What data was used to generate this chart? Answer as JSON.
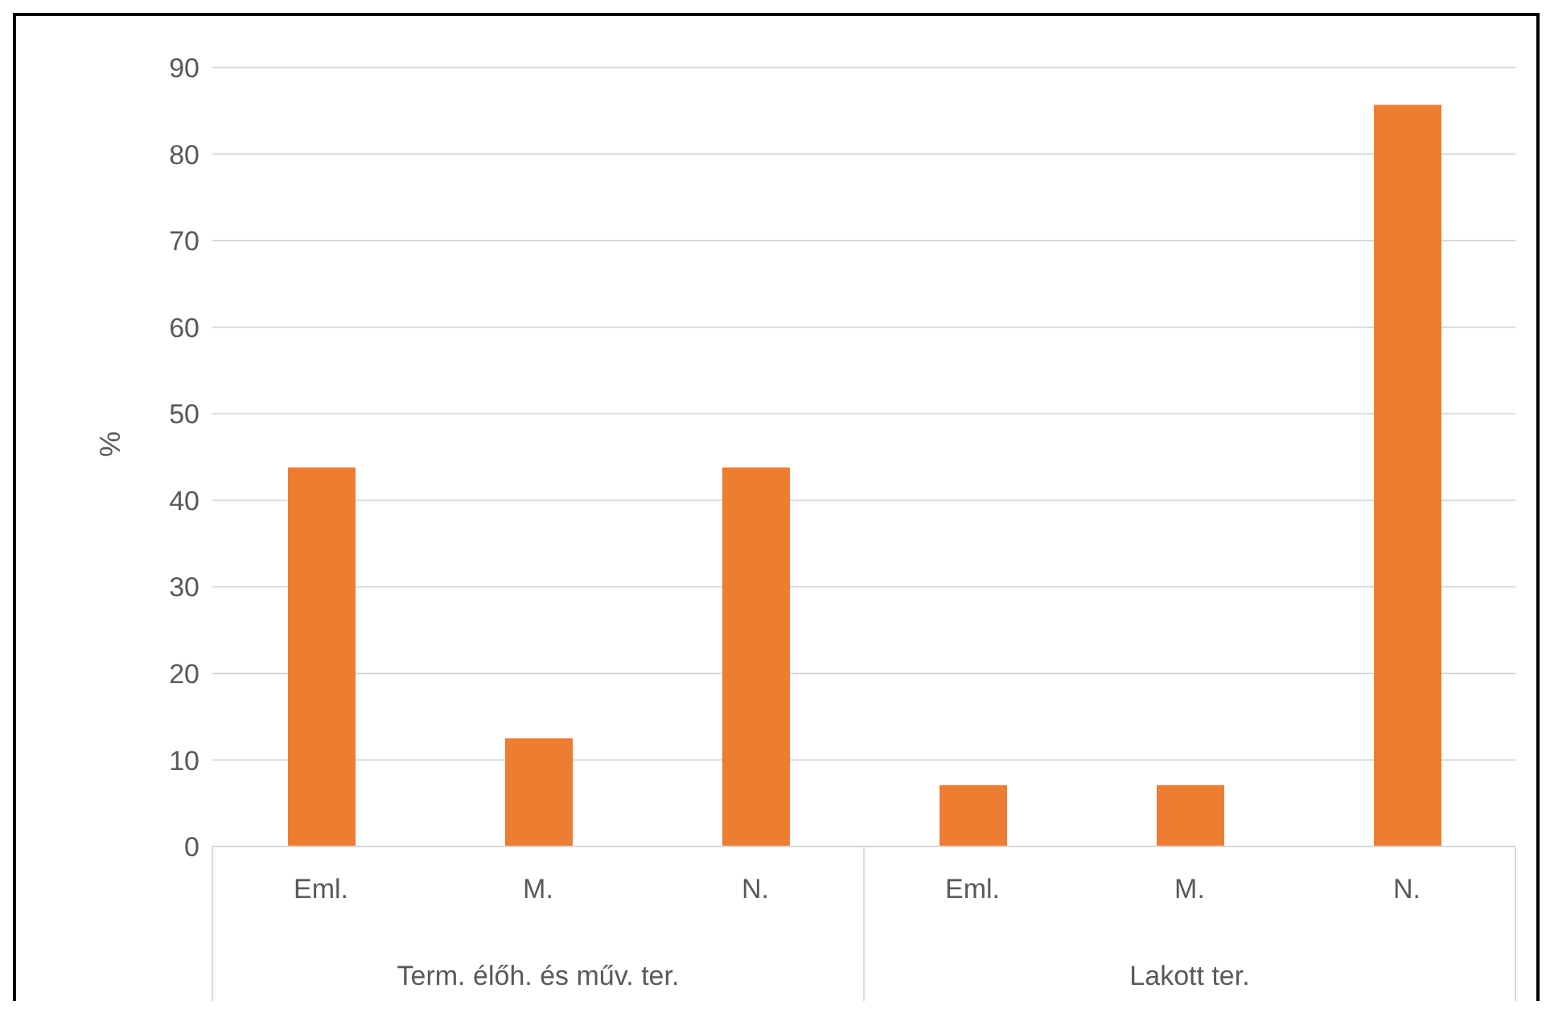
{
  "chart_data": {
    "type": "bar",
    "ylabel": "%",
    "categories": [
      "Eml.",
      "M.",
      "N.",
      "Eml.",
      "M.",
      "N."
    ],
    "values": [
      43.8,
      12.5,
      43.8,
      7.1,
      7.1,
      85.7
    ],
    "color": "#ed7d31",
    "ylim": [
      0,
      90
    ],
    "yticks": [
      0,
      10,
      20,
      30,
      40,
      50,
      60,
      70,
      80,
      90
    ],
    "grid": "y",
    "legend": false,
    "annotations": [
      "Term. élőh. és műv. ter.",
      "Lakott ter."
    ]
  }
}
